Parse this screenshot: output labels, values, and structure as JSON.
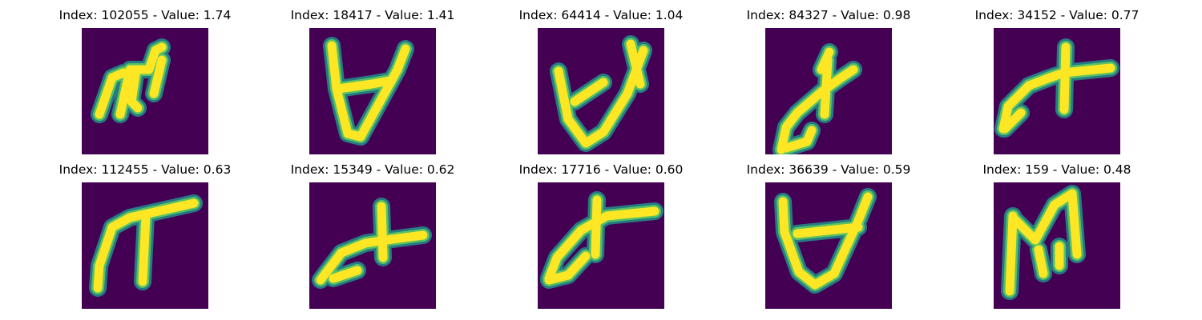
{
  "panels": [
    {
      "index": "102055",
      "value": "1.74"
    },
    {
      "index": "18417",
      "value": "1.41"
    },
    {
      "index": "64414",
      "value": "1.04"
    },
    {
      "index": "84327",
      "value": "0.98"
    },
    {
      "index": "34152",
      "value": "0.77"
    },
    {
      "index": "112455",
      "value": "0.63"
    },
    {
      "index": "15349",
      "value": "0.62"
    },
    {
      "index": "17716",
      "value": "0.60"
    },
    {
      "index": "36639",
      "value": "0.59"
    },
    {
      "index": "159",
      "value": "0.48"
    }
  ],
  "colors": {
    "background": "#440154",
    "stroke_edge": "#21918c",
    "stroke_mid": "#5ec962",
    "stroke_core": "#fde725"
  }
}
